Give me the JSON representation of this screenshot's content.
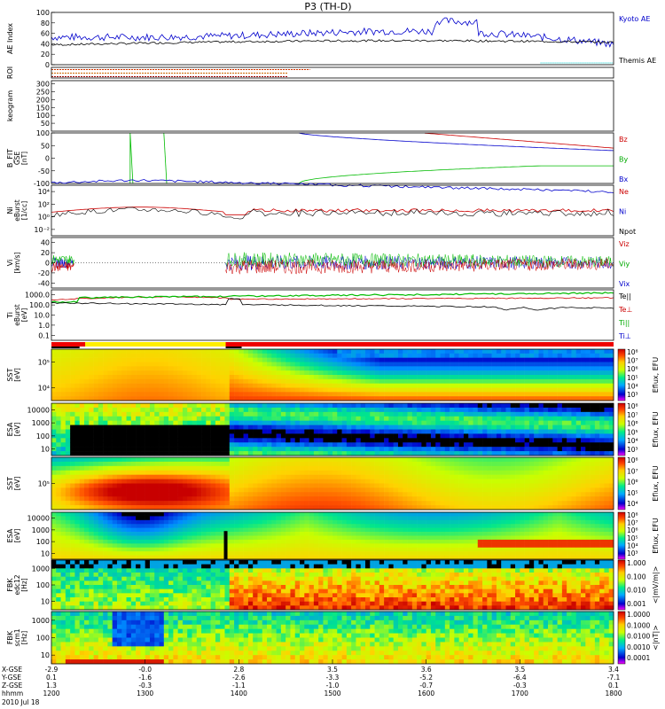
{
  "chart_data": {
    "type": "stacked-timeseries",
    "title": "P3 (TH-D)",
    "date": "2010 Jul 18",
    "x_ticks": [
      "1200",
      "1300",
      "1400",
      "1500",
      "1600",
      "1700",
      "1800"
    ],
    "x_range": [
      "12:00",
      "18:00"
    ],
    "ephemeris": {
      "labels": [
        "X-GSE",
        "Y-GSE",
        "Z-GSE",
        "hhmm"
      ],
      "rows": [
        [
          "-2.9",
          "-0.0",
          "2.8",
          "3.5",
          "3.6",
          "3.5",
          "3.4"
        ],
        [
          "0.1",
          "-1.6",
          "-2.6",
          "-3.3",
          "-5.2",
          "-6.4",
          "-7.1"
        ],
        [
          "1.3",
          "-0.3",
          "-1.1",
          "-1.0",
          "-0.7",
          "-0.3",
          "0.1"
        ]
      ]
    },
    "panels": [
      {
        "id": "ae",
        "ylabel": "AE Index",
        "yticks": [
          "0",
          "20",
          "40",
          "60",
          "80",
          "100"
        ],
        "ylim": [
          0,
          100
        ],
        "legend": [
          {
            "label": "Kyoto AE",
            "color": "#0000cc"
          },
          {
            "label": "Themis AE",
            "color": "#000000"
          }
        ]
      },
      {
        "id": "roi",
        "ylabel": "ROI",
        "yticks": []
      },
      {
        "id": "keogram",
        "ylabel": "keogram",
        "yticks": [
          "50",
          "100",
          "150",
          "200",
          "250",
          "300"
        ],
        "ylim": [
          0,
          320
        ]
      },
      {
        "id": "bfit",
        "ylabel": "B_FIT",
        "sublabels": [
          "GSE",
          "[nT]"
        ],
        "yticks": [
          "-100",
          "-50",
          "0",
          "50",
          "100"
        ],
        "ylim": [
          -100,
          100
        ],
        "legend": [
          {
            "label": "Bz",
            "color": "#cc0000"
          },
          {
            "label": "By",
            "color": "#00aa00"
          },
          {
            "label": "Bx",
            "color": "#0000cc"
          }
        ]
      },
      {
        "id": "ni",
        "ylabel": "Ni",
        "sublabels": [
          "eBurst",
          "[1/cc]"
        ],
        "yticks": [
          "10⁴",
          "10²",
          "10⁰",
          "10⁻²"
        ],
        "legend": [
          {
            "label": "Ne",
            "color": "#cc0000"
          },
          {
            "label": "Ni",
            "color": "#0000cc"
          },
          {
            "label": "Npot",
            "color": "#000000"
          }
        ]
      },
      {
        "id": "vi",
        "ylabel": "Vi",
        "sublabels": [
          "[km/s]"
        ],
        "yticks": [
          "-40",
          "-20",
          "0",
          "20",
          "40"
        ],
        "ylim": [
          -50,
          50
        ],
        "legend": [
          {
            "label": "Viz",
            "color": "#cc0000"
          },
          {
            "label": "Viy",
            "color": "#00aa00"
          },
          {
            "label": "Vix",
            "color": "#0000cc"
          }
        ]
      },
      {
        "id": "ti",
        "ylabel": "Ti",
        "sublabels": [
          "eBurst",
          "[eV]"
        ],
        "yticks": [
          "1000.0",
          "100.0",
          "10.0",
          "1.0",
          "0.1"
        ],
        "legend": [
          {
            "label": "Te||",
            "color": "#000000"
          },
          {
            "label": "Te⊥",
            "color": "#cc0000"
          },
          {
            "label": "Ti||",
            "color": "#00aa00"
          },
          {
            "label": "Ti⊥",
            "color": "#0000cc"
          }
        ]
      },
      {
        "id": "sst_e",
        "ylabel": "SST",
        "sublabels": [
          "[eV]"
        ],
        "yticks": [
          "10⁵",
          "10⁴"
        ],
        "spectrogram": true,
        "colorbar": {
          "label": "Eflux, EFU",
          "ticks": [
            "10⁸",
            "10⁷",
            "10⁶",
            "10⁵",
            "10⁴",
            "10³"
          ]
        }
      },
      {
        "id": "esa_e",
        "ylabel": "ESA",
        "sublabels": [
          "[eV]"
        ],
        "yticks": [
          "10000",
          "1000",
          "100",
          "10"
        ],
        "spectrogram": true,
        "colorbar": {
          "label": "Eflux, EFU",
          "ticks": [
            "10⁸",
            "10⁷",
            "10⁶",
            "10⁵",
            "10⁴",
            "10³"
          ]
        }
      },
      {
        "id": "sst_i",
        "ylabel": "SST",
        "sublabels": [
          "[eV]"
        ],
        "yticks": [
          "10⁵"
        ],
        "spectrogram": true,
        "colorbar": {
          "label": "Eflux, EFU",
          "ticks": [
            "10⁸",
            "10⁷",
            "10⁶",
            "10⁵",
            "10⁴"
          ]
        }
      },
      {
        "id": "esa_i",
        "ylabel": "ESA",
        "sublabels": [
          "[eV]"
        ],
        "yticks": [
          "10000",
          "1000",
          "100",
          "10"
        ],
        "spectrogram": true,
        "colorbar": {
          "label": "Eflux, EFU",
          "ticks": [
            "10⁸",
            "10⁷",
            "10⁶",
            "10⁵",
            "10⁴",
            "10³"
          ]
        }
      },
      {
        "id": "fbk_e",
        "ylabel": "FBK",
        "sublabels": [
          "edc12",
          "[Hz]"
        ],
        "yticks": [
          "1000",
          "100",
          "10"
        ],
        "spectrogram": true,
        "colorbar": {
          "label": "<|mV/m|>",
          "ticks": [
            "1.000",
            "0.100",
            "0.010",
            "0.001"
          ]
        }
      },
      {
        "id": "fbk_b",
        "ylabel": "FBK",
        "sublabels": [
          "scm1",
          "[Hz]"
        ],
        "yticks": [
          "1000",
          "100",
          "10"
        ],
        "spectrogram": true,
        "colorbar": {
          "label": "<|nT|>",
          "ticks": [
            "1.0000",
            "0.1000",
            "0.0100",
            "0.0010",
            "0.0001"
          ]
        }
      }
    ]
  },
  "colors": {
    "kyoto_ae": "#0000cc",
    "themis_ae": "#000000",
    "red": "#cc0000",
    "green": "#00bb00",
    "blue": "#0000cc"
  }
}
